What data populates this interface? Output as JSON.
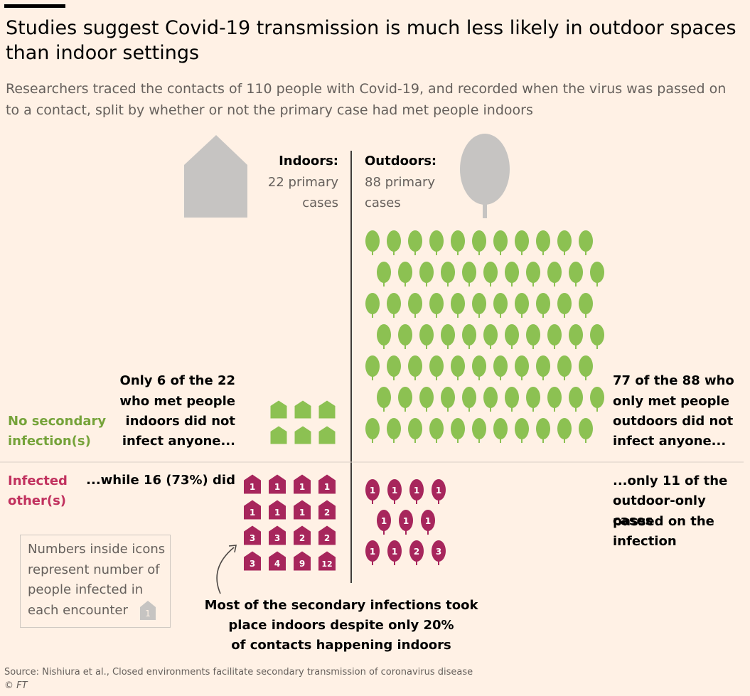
{
  "title": "Studies suggest Covid-19 transmission is much less likely in outdoor spaces than indoor settings",
  "subtitle": "Researchers traced the contacts of 110 people with Covid-19, and recorded when the virus was passed on to a contact, split by whether or not the primary case had met people indoors",
  "headers": {
    "indoors_label": "Indoors:",
    "indoors_line1": "22 primary",
    "indoors_line2": "cases",
    "outdoors_label": "Outdoors:",
    "outdoors_line1": "88 primary",
    "outdoors_line2": "cases"
  },
  "row_labels": {
    "no_secondary_1": "No secondary",
    "no_secondary_2": "infection(s)",
    "infected_1": "Infected",
    "infected_2": "other(s)"
  },
  "annotations": {
    "indoor_none_1": "Only 6 of the 22",
    "indoor_none_2": "who met people",
    "indoor_none_3": "indoors did not",
    "indoor_none_4": "infect anyone...",
    "indoor_inf": "...while 16 (73%) did",
    "outdoor_none_1": "77 of the 88 who",
    "outdoor_none_2": "only met people",
    "outdoor_none_3": "outdoors did not",
    "outdoor_none_4": "infect anyone...",
    "outdoor_inf_1": "...only 11 of the",
    "outdoor_inf_2": "outdoor-only cases",
    "outdoor_inf_3": "passed on the",
    "outdoor_inf_4": "infection",
    "bottom_1": "Most of the secondary infections took",
    "bottom_2": "place indoors despite only 20%",
    "bottom_3": "of contacts happening indoors"
  },
  "key": {
    "line1": "Numbers inside icons",
    "line2": "represent number of",
    "line3": "people infected in",
    "line4": "each encounter",
    "icon_number": "1"
  },
  "source": "Source: Nishiura et al., Closed environments facilitate secondary transmission of coronavirus disease",
  "copyright": "© FT",
  "colors": {
    "green": "#8cc152",
    "green_text": "#76a33a",
    "red": "#a7265c",
    "grey": "#c6c4c2"
  },
  "chart_data": {
    "type": "unit-chart",
    "categories": [
      "Indoors",
      "Outdoors"
    ],
    "primary_cases": {
      "Indoors": 22,
      "Outdoors": 88
    },
    "no_secondary_infection": {
      "Indoors": 6,
      "Outdoors": 77
    },
    "infected_others": {
      "Indoors": 16,
      "Outdoors": 11
    },
    "indoor_infected_pct": 73,
    "infections_per_encounter": {
      "Indoors": [
        1,
        1,
        1,
        1,
        1,
        1,
        1,
        2,
        3,
        3,
        2,
        2,
        3,
        4,
        9,
        12
      ],
      "Outdoors": [
        1,
        1,
        1,
        1,
        1,
        1,
        1,
        1,
        1,
        2,
        3
      ]
    }
  }
}
